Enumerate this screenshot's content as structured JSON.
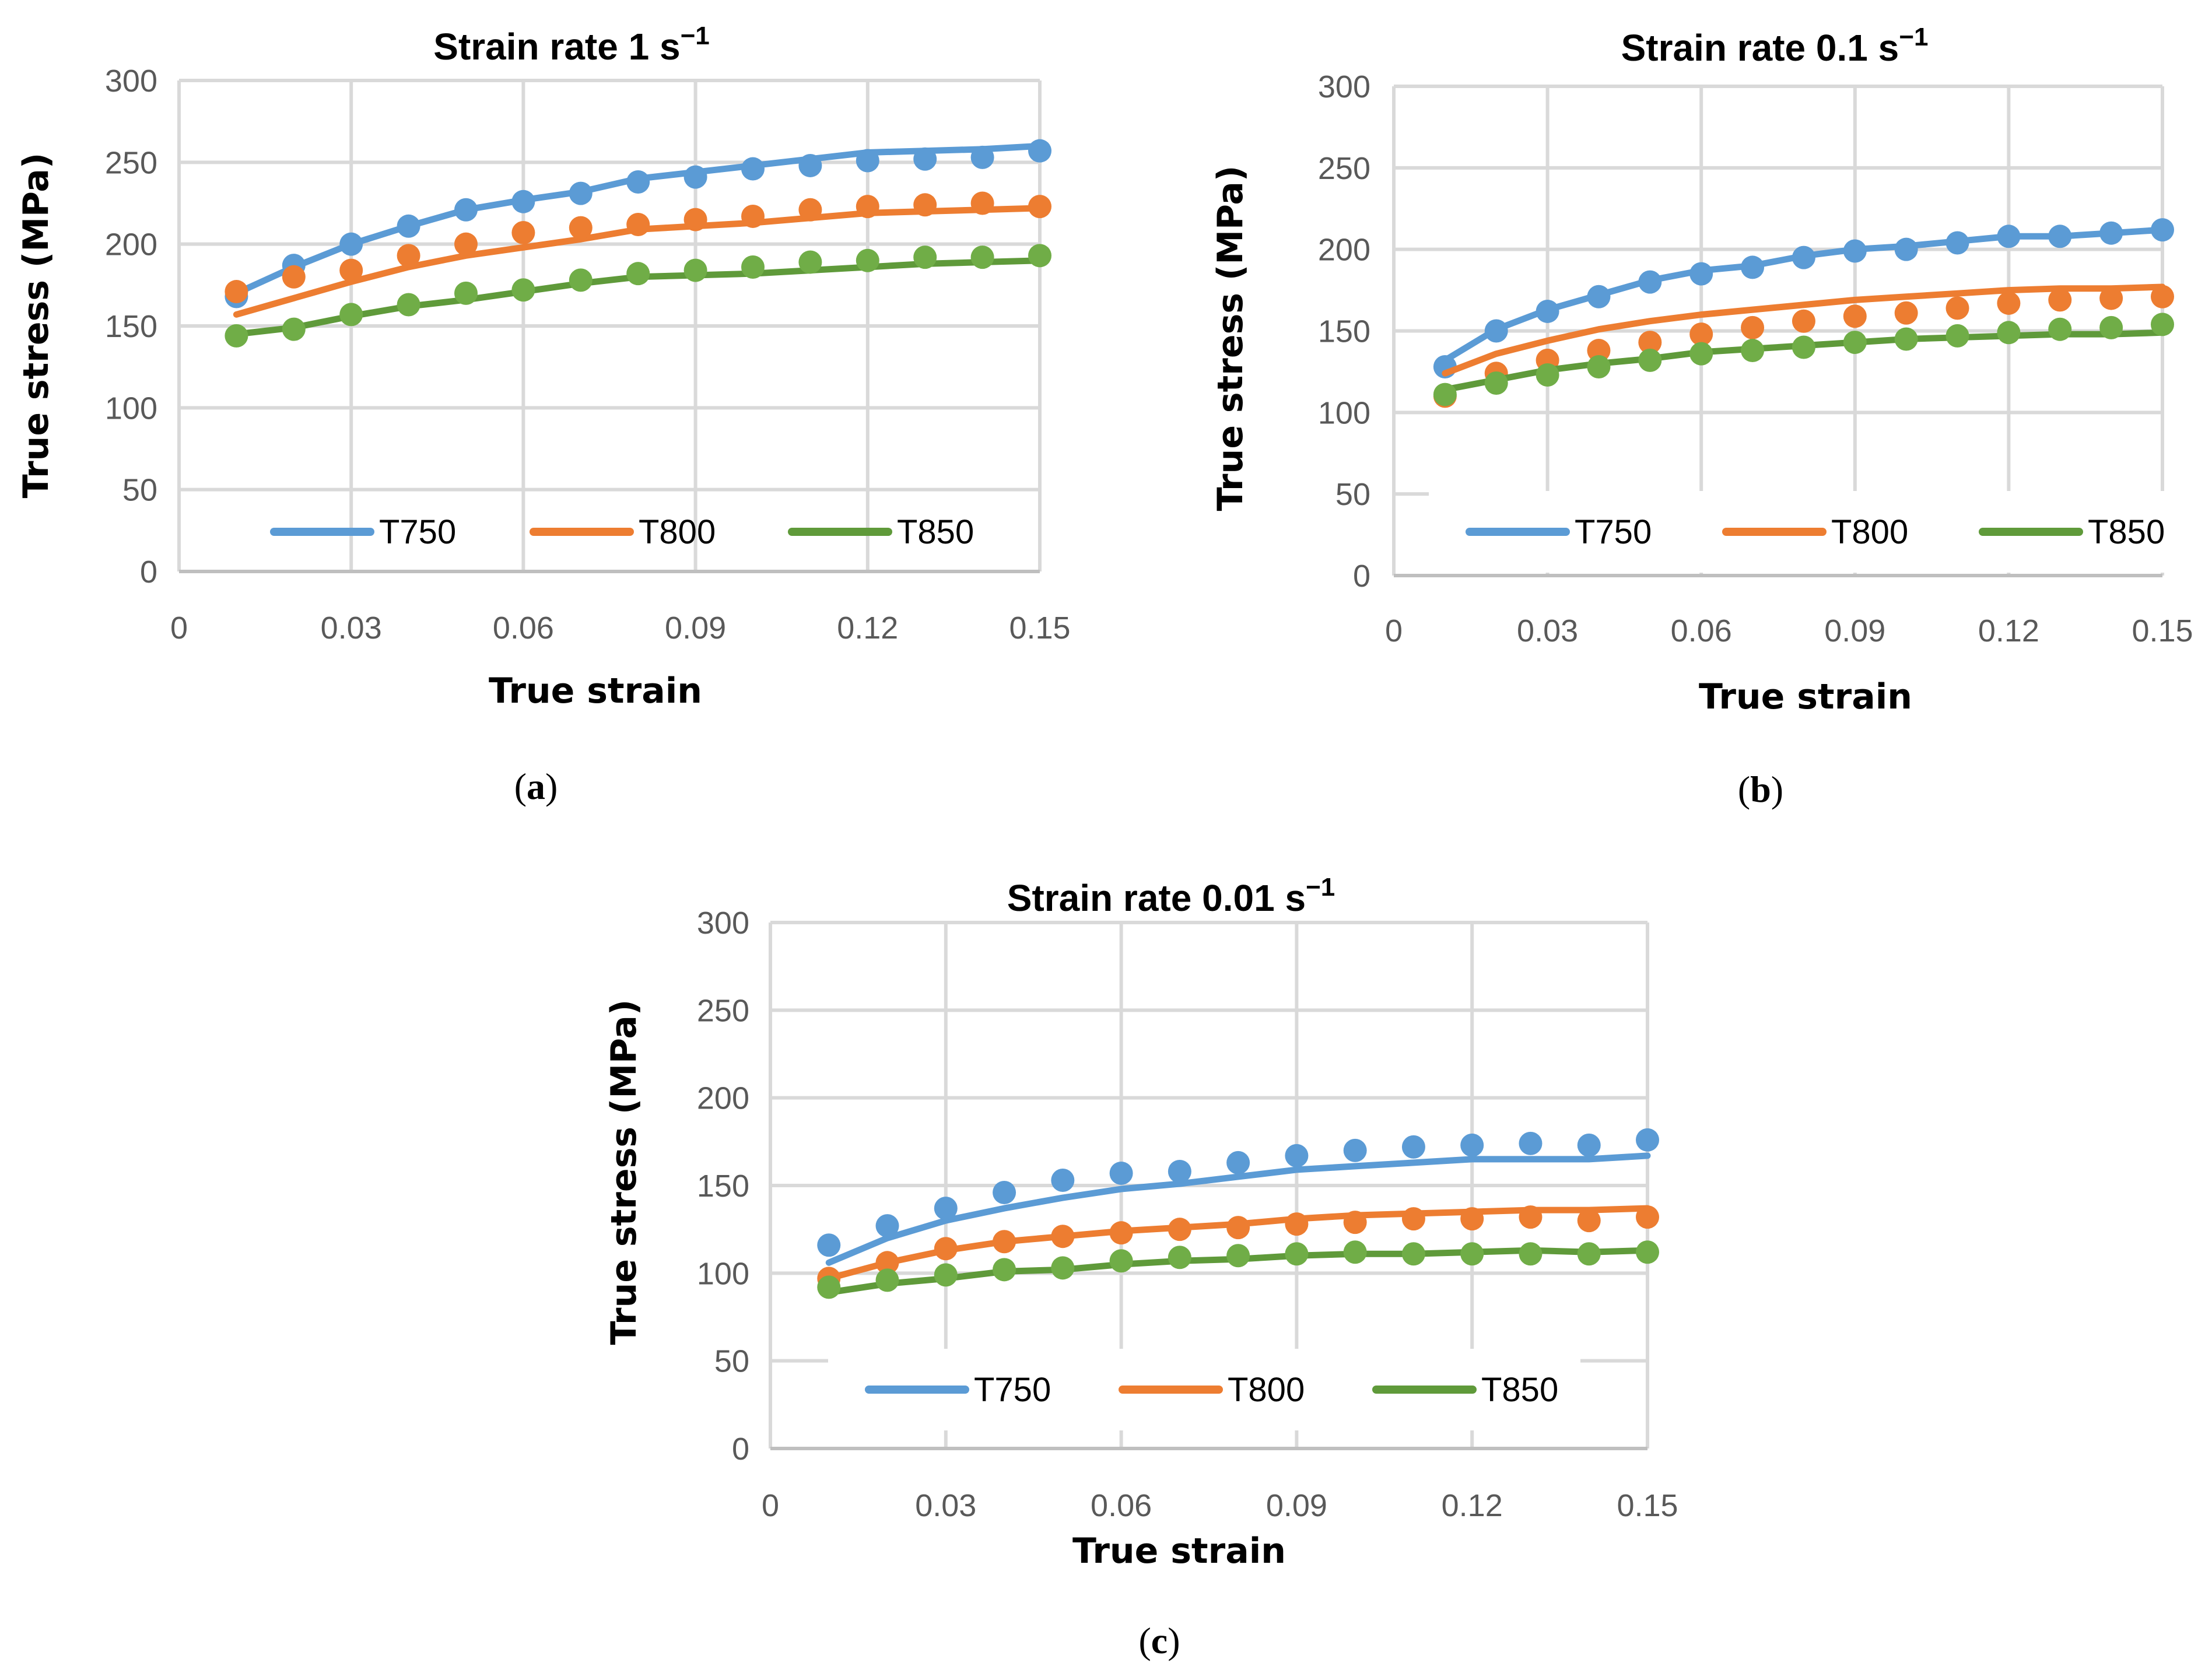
{
  "colors": {
    "T750": "#5b9bd5",
    "T800": "#ed7d31",
    "T850": "#70ad47",
    "T850_line": "#5f9a3a",
    "grid": "#d9d9d9"
  },
  "chart_data": [
    {
      "type": "line",
      "caption": "(a)",
      "title": "Strain rate 1 s",
      "title_sup": "−1",
      "xlabel": "True strain",
      "ylabel": "True stress (MPa)",
      "xlim": [
        0,
        0.15
      ],
      "ylim": [
        0,
        300
      ],
      "xticks": [
        "0",
        "0.03",
        "0.06",
        "0.09",
        "0.12",
        "0.15"
      ],
      "yticks": [
        "0",
        "50",
        "100",
        "150",
        "200",
        "250",
        "300"
      ],
      "grid": true,
      "legend": "bottom-inside",
      "x": [
        0.01,
        0.02,
        0.03,
        0.04,
        0.05,
        0.06,
        0.07,
        0.08,
        0.09,
        0.1,
        0.11,
        0.12,
        0.13,
        0.14,
        0.15
      ],
      "series": [
        {
          "name": "T750",
          "points": [
            168,
            187,
            200,
            211,
            221,
            226,
            231,
            238,
            241,
            246,
            248,
            251,
            252,
            253,
            257
          ],
          "fit": [
            170,
            186,
            200,
            211,
            221,
            227,
            232,
            240,
            244,
            248,
            252,
            256,
            257,
            258,
            260
          ]
        },
        {
          "name": "T800",
          "points": [
            171,
            180,
            184,
            193,
            200,
            207,
            210,
            212,
            215,
            217,
            221,
            223,
            224,
            225,
            223
          ],
          "fit": [
            157,
            167,
            177,
            186,
            193,
            198,
            203,
            209,
            211,
            213,
            216,
            219,
            220,
            221,
            222
          ]
        },
        {
          "name": "T850",
          "points": [
            144,
            148,
            157,
            163,
            170,
            172,
            178,
            182,
            184,
            186,
            189,
            190,
            192,
            192,
            193
          ],
          "fit": [
            145,
            149,
            156,
            162,
            166,
            171,
            176,
            180,
            181,
            182,
            184,
            186,
            188,
            189,
            190
          ]
        }
      ]
    },
    {
      "type": "line",
      "caption": "(b)",
      "title": "Strain rate 0.1 s",
      "title_sup": "−1",
      "xlabel": "True strain",
      "ylabel": "True stress (MPa)",
      "xlim": [
        0,
        0.15
      ],
      "ylim": [
        0,
        300
      ],
      "xticks": [
        "0",
        "0.03",
        "0.06",
        "0.09",
        "0.12",
        "0.15"
      ],
      "yticks": [
        "0",
        "50",
        "100",
        "150",
        "200",
        "250",
        "300"
      ],
      "grid": true,
      "legend": "bottom-inside",
      "x": [
        0.01,
        0.02,
        0.03,
        0.04,
        0.05,
        0.06,
        0.07,
        0.08,
        0.09,
        0.1,
        0.11,
        0.12,
        0.13,
        0.14,
        0.15
      ],
      "series": [
        {
          "name": "T750",
          "points": [
            128,
            150,
            162,
            171,
            180,
            185,
            189,
            195,
            199,
            200,
            204,
            208,
            208,
            210,
            212
          ],
          "fit": [
            132,
            151,
            163,
            172,
            181,
            187,
            190,
            196,
            200,
            202,
            205,
            208,
            208,
            210,
            212
          ]
        },
        {
          "name": "T800",
          "points": [
            110,
            124,
            132,
            138,
            143,
            148,
            152,
            156,
            159,
            161,
            164,
            167,
            169,
            170,
            171
          ],
          "fit": [
            124,
            136,
            144,
            151,
            156,
            160,
            163,
            166,
            169,
            171,
            173,
            175,
            176,
            176,
            177
          ]
        },
        {
          "name": "T850",
          "points": [
            111,
            118,
            123,
            128,
            132,
            136,
            138,
            140,
            143,
            145,
            147,
            149,
            151,
            152,
            154
          ],
          "fit": [
            114,
            120,
            126,
            130,
            133,
            137,
            139,
            141,
            143,
            145,
            146,
            147,
            148,
            148,
            149
          ]
        }
      ]
    },
    {
      "type": "line",
      "caption": "(c)",
      "title": "Strain rate 0.01 s",
      "title_sup": "−1",
      "xlabel": "True strain",
      "ylabel": "True stress (MPa)",
      "xlim": [
        0,
        0.15
      ],
      "ylim": [
        0,
        300
      ],
      "xticks": [
        "0",
        "0.03",
        "0.06",
        "0.09",
        "0.12",
        "0.15"
      ],
      "yticks": [
        "0",
        "50",
        "100",
        "150",
        "200",
        "250",
        "300"
      ],
      "grid": true,
      "legend": "bottom-inside",
      "x": [
        0.01,
        0.02,
        0.03,
        0.04,
        0.05,
        0.06,
        0.07,
        0.08,
        0.09,
        0.1,
        0.11,
        0.12,
        0.13,
        0.14,
        0.15
      ],
      "series": [
        {
          "name": "T750",
          "points": [
            116,
            127,
            137,
            146,
            153,
            157,
            158,
            163,
            167,
            170,
            172,
            173,
            174,
            173,
            176
          ],
          "fit": [
            106,
            120,
            130,
            137,
            143,
            148,
            151,
            155,
            159,
            161,
            163,
            165,
            165,
            165,
            167
          ]
        },
        {
          "name": "T800",
          "points": [
            97,
            106,
            114,
            118,
            121,
            123,
            125,
            126,
            128,
            129,
            131,
            131,
            132,
            130,
            132
          ],
          "fit": [
            97,
            106,
            113,
            118,
            121,
            124,
            126,
            128,
            131,
            133,
            134,
            135,
            136,
            136,
            137
          ]
        },
        {
          "name": "T850",
          "points": [
            92,
            96,
            99,
            102,
            103,
            107,
            109,
            110,
            111,
            112,
            111,
            111,
            111,
            111,
            112
          ],
          "fit": [
            89,
            94,
            97,
            101,
            102,
            105,
            107,
            108,
            110,
            111,
            111,
            112,
            113,
            112,
            113
          ]
        }
      ]
    }
  ]
}
